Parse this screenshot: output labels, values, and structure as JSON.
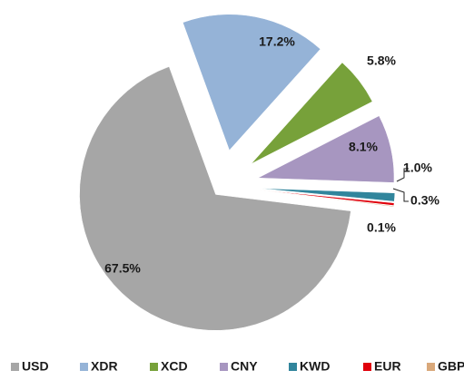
{
  "chart_data": {
    "type": "pie",
    "categories": [
      "USD",
      "XDR",
      "XCD",
      "CNY",
      "KWD",
      "EUR",
      "GBP"
    ],
    "values": [
      67.5,
      17.2,
      5.8,
      8.1,
      1.0,
      0.3,
      0.1
    ],
    "value_labels": [
      "67.5%",
      "17.2%",
      "5.8%",
      "8.1%",
      "1.0%",
      "0.3%",
      "0.1%"
    ],
    "colors": [
      "#a6a6a6",
      "#95b3d7",
      "#77a13a",
      "#a796c0",
      "#31859c",
      "#e0000b",
      "#d9a87a"
    ],
    "legend": "bottom"
  }
}
